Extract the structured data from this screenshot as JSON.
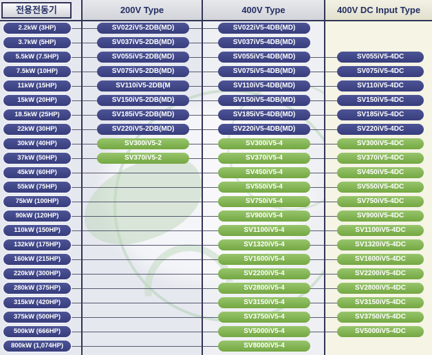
{
  "colors": {
    "navy": "#3d4384",
    "green": "#80b04f",
    "divider": "#2f3254",
    "connector_line": "#55586e",
    "header_text": "#242e62",
    "bg": "#e6e8ef",
    "bg_col3": "#eff0f3",
    "bg_col4": "#f5f4e5",
    "badge_text": "#ffffff",
    "watermark_green": "#bcd6ba"
  },
  "headers": {
    "motor": "전용전동기",
    "v200": "200V Type",
    "v400": "400V Type",
    "v400dc": "400V DC Input Type"
  },
  "rows": [
    {
      "power": "2.2kW (3HP)",
      "v200": {
        "text": "SV022iV5-2DB(MD)",
        "color": "navy"
      },
      "v400": {
        "text": "SV022iV5-4DB(MD)",
        "color": "navy"
      },
      "v400dc": null
    },
    {
      "power": "3.7kW (5HP)",
      "v200": {
        "text": "SV037iV5-2DB(MD)",
        "color": "navy"
      },
      "v400": {
        "text": "SV037iV5-4DB(MD)",
        "color": "navy"
      },
      "v400dc": null
    },
    {
      "power": "5.5kW (7.5HP)",
      "v200": {
        "text": "SV055iV5-2DB(MD)",
        "color": "navy"
      },
      "v400": {
        "text": "SV055iV5-4DB(MD)",
        "color": "navy"
      },
      "v400dc": {
        "text": "SV055iV5-4DC",
        "color": "navy"
      }
    },
    {
      "power": "7.5kW (10HP)",
      "v200": {
        "text": "SV075iV5-2DB(MD)",
        "color": "navy"
      },
      "v400": {
        "text": "SV075iV5-4DB(MD)",
        "color": "navy"
      },
      "v400dc": {
        "text": "SV075iV5-4DC",
        "color": "navy"
      }
    },
    {
      "power": "11kW (15HP)",
      "v200": {
        "text": "SV110iV5-2DB(M",
        "color": "navy"
      },
      "v400": {
        "text": "SV110iV5-4DB(MD)",
        "color": "navy"
      },
      "v400dc": {
        "text": "SV110iV5-4DC",
        "color": "navy"
      }
    },
    {
      "power": "15kW (20HP)",
      "v200": {
        "text": "SV150iV5-2DB(MD)",
        "color": "navy"
      },
      "v400": {
        "text": "SV150iV5-4DB(MD)",
        "color": "navy"
      },
      "v400dc": {
        "text": "SV150iV5-4DC",
        "color": "navy"
      }
    },
    {
      "power": "18.5kW (25HP)",
      "v200": {
        "text": "SV185iV5-2DB(MD)",
        "color": "navy"
      },
      "v400": {
        "text": "SV185iV5-4DB(MD)",
        "color": "navy"
      },
      "v400dc": {
        "text": "SV185iV5-4DC",
        "color": "navy"
      }
    },
    {
      "power": "22kW (30HP)",
      "v200": {
        "text": "SV220iV5-2DB(MD)",
        "color": "navy"
      },
      "v400": {
        "text": "SV220iV5-4DB(MD)",
        "color": "navy"
      },
      "v400dc": {
        "text": "SV220iV5-4DC",
        "color": "navy"
      }
    },
    {
      "power": "30kW (40HP)",
      "v200": {
        "text": "SV300iV5-2",
        "color": "green"
      },
      "v400": {
        "text": "SV300iV5-4",
        "color": "green"
      },
      "v400dc": {
        "text": "SV300iV5-4DC",
        "color": "green"
      }
    },
    {
      "power": "37kW (50HP)",
      "v200": {
        "text": "SV370iV5-2",
        "color": "green"
      },
      "v400": {
        "text": "SV370iV5-4",
        "color": "green"
      },
      "v400dc": {
        "text": "SV370iV5-4DC",
        "color": "green"
      }
    },
    {
      "power": "45kW (60HP)",
      "v200": null,
      "v400": {
        "text": "SV450iV5-4",
        "color": "green"
      },
      "v400dc": {
        "text": "SV450iV5-4DC",
        "color": "green"
      }
    },
    {
      "power": "55kW (75HP)",
      "v200": null,
      "v400": {
        "text": "SV550iV5-4",
        "color": "green"
      },
      "v400dc": {
        "text": "SV550iV5-4DC",
        "color": "green"
      }
    },
    {
      "power": "75kW (100HP)",
      "v200": null,
      "v400": {
        "text": "SV750iV5-4",
        "color": "green"
      },
      "v400dc": {
        "text": "SV750iV5-4DC",
        "color": "green"
      }
    },
    {
      "power": "90kW (120HP)",
      "v200": null,
      "v400": {
        "text": "SV900iV5-4",
        "color": "green"
      },
      "v400dc": {
        "text": "SV900iV5-4DC",
        "color": "green"
      }
    },
    {
      "power": "110kW (150HP)",
      "v200": null,
      "v400": {
        "text": "SV1100iV5-4",
        "color": "green"
      },
      "v400dc": {
        "text": "SV1100iV5-4DC",
        "color": "green"
      }
    },
    {
      "power": "132kW (175HP)",
      "v200": null,
      "v400": {
        "text": "SV1320iV5-4",
        "color": "green"
      },
      "v400dc": {
        "text": "SV1320iV5-4DC",
        "color": "green"
      }
    },
    {
      "power": "160kW (215HP)",
      "v200": null,
      "v400": {
        "text": "SV1600iV5-4",
        "color": "green"
      },
      "v400dc": {
        "text": "SV1600iV5-4DC",
        "color": "green"
      }
    },
    {
      "power": "220kW (300HP)",
      "v200": null,
      "v400": {
        "text": "SV2200iV5-4",
        "color": "green"
      },
      "v400dc": {
        "text": "SV2200iV5-4DC",
        "color": "green"
      }
    },
    {
      "power": "280kW (375HP)",
      "v200": null,
      "v400": {
        "text": "SV2800iV5-4",
        "color": "green"
      },
      "v400dc": {
        "text": "SV2800iV5-4DC",
        "color": "green"
      }
    },
    {
      "power": "315kW (420HP)",
      "v200": null,
      "v400": {
        "text": "SV3150iV5-4",
        "color": "green"
      },
      "v400dc": {
        "text": "SV3150iV5-4DC",
        "color": "green"
      }
    },
    {
      "power": "375kW (500HP)",
      "v200": null,
      "v400": {
        "text": "SV3750iV5-4",
        "color": "green"
      },
      "v400dc": {
        "text": "SV3750iV5-4DC",
        "color": "green"
      }
    },
    {
      "power": "500kW (666HP)",
      "v200": null,
      "v400": {
        "text": "SV5000iV5-4",
        "color": "green"
      },
      "v400dc": {
        "text": "SV5000iV5-4DC",
        "color": "green"
      }
    },
    {
      "power": "800kW (1,074HP)",
      "v200": null,
      "v400": {
        "text": "SV8000iV5-4",
        "color": "green"
      },
      "v400dc": null
    }
  ]
}
